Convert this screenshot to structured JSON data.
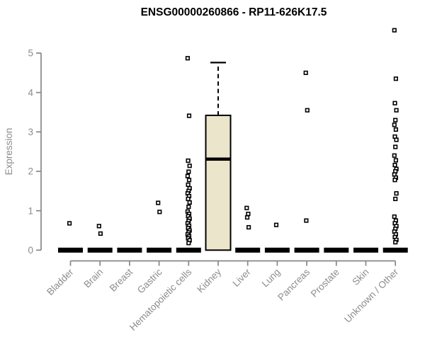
{
  "header": {
    "title": "ENSG00000260866 - RP11-626K17.5"
  },
  "chart_data": {
    "type": "boxplot",
    "title": "ENSG00000260866 - RP11-626K17.5",
    "xlabel": "",
    "ylabel": "Expression",
    "ylim": [
      0,
      5
    ],
    "yticks": [
      0,
      1,
      2,
      3,
      4,
      5
    ],
    "grid": false,
    "legend": "none",
    "marker": "open-square",
    "categories": [
      "Bladder",
      "Brain",
      "Breast",
      "Gastric",
      "Hematopoietic cells",
      "Kidney",
      "Liver",
      "Lung",
      "Pancreas",
      "Prostate",
      "Skin",
      "Unknown / Other"
    ],
    "boxes": [
      {
        "category": "Bladder",
        "q1": 0,
        "median": 0,
        "q3": 0,
        "whisker_low": 0,
        "whisker_high": 0,
        "outliers": [
          0.68
        ]
      },
      {
        "category": "Brain",
        "q1": 0,
        "median": 0,
        "q3": 0,
        "whisker_low": 0,
        "whisker_high": 0,
        "outliers": [
          0.61,
          0.42
        ]
      },
      {
        "category": "Breast",
        "q1": 0,
        "median": 0,
        "q3": 0,
        "whisker_low": 0,
        "whisker_high": 0,
        "outliers": []
      },
      {
        "category": "Gastric",
        "q1": 0,
        "median": 0,
        "q3": 0,
        "whisker_low": 0,
        "whisker_high": 0,
        "outliers": [
          1.2,
          0.97
        ]
      },
      {
        "category": "Hematopoietic cells",
        "q1": 0,
        "median": 0,
        "q3": 0,
        "whisker_low": 0,
        "whisker_high": 0,
        "outliers": [
          4.87,
          3.41,
          2.27,
          2.14,
          1.99,
          1.88,
          1.78,
          1.66,
          1.57,
          1.5,
          1.44,
          1.37,
          1.3,
          1.21,
          1.1,
          0.98,
          0.92,
          0.86,
          0.8,
          0.74,
          0.68,
          0.62,
          0.56,
          0.5,
          0.45,
          0.4,
          0.35,
          0.3,
          0.25,
          0.18
        ]
      },
      {
        "category": "Kidney",
        "q1": 0,
        "median": 2.31,
        "q3": 3.42,
        "whisker_low": 0,
        "whisker_high": 4.76,
        "outliers": []
      },
      {
        "category": "Liver",
        "q1": 0,
        "median": 0,
        "q3": 0,
        "whisker_low": 0,
        "whisker_high": 0,
        "outliers": [
          1.07,
          0.92,
          0.83,
          0.58
        ]
      },
      {
        "category": "Lung",
        "q1": 0,
        "median": 0,
        "q3": 0,
        "whisker_low": 0,
        "whisker_high": 0,
        "outliers": [
          0.64
        ]
      },
      {
        "category": "Pancreas",
        "q1": 0,
        "median": 0,
        "q3": 0,
        "whisker_low": 0,
        "whisker_high": 0,
        "outliers": [
          4.5,
          3.55,
          0.75
        ]
      },
      {
        "category": "Prostate",
        "q1": 0,
        "median": 0,
        "q3": 0,
        "whisker_low": 0,
        "whisker_high": 0,
        "outliers": []
      },
      {
        "category": "Skin",
        "q1": 0,
        "median": 0,
        "q3": 0,
        "whisker_low": 0,
        "whisker_high": 0,
        "outliers": []
      },
      {
        "category": "Unknown / Other",
        "q1": 0,
        "median": 0,
        "q3": 0,
        "whisker_low": 0,
        "whisker_high": 0,
        "outliers": [
          5.58,
          4.35,
          3.73,
          3.55,
          3.3,
          3.18,
          3.06,
          2.88,
          2.8,
          2.62,
          2.4,
          2.28,
          2.16,
          2.06,
          2.0,
          1.92,
          1.84,
          1.78,
          1.44,
          1.3,
          0.85,
          0.75,
          0.68,
          0.61,
          0.54,
          0.47,
          0.4,
          0.33,
          0.26,
          0.2
        ]
      }
    ],
    "colors": {
      "background": "#ffffff",
      "box_fill": "#EBE5CB",
      "box_stroke": "#000000",
      "median": "#000000",
      "whisker": "#000000",
      "outlier_stroke": "#000000",
      "outlier_fill": "#ffffff",
      "axis": "#878787",
      "tick_label": "#8c8c8c",
      "title": "#000000"
    }
  }
}
